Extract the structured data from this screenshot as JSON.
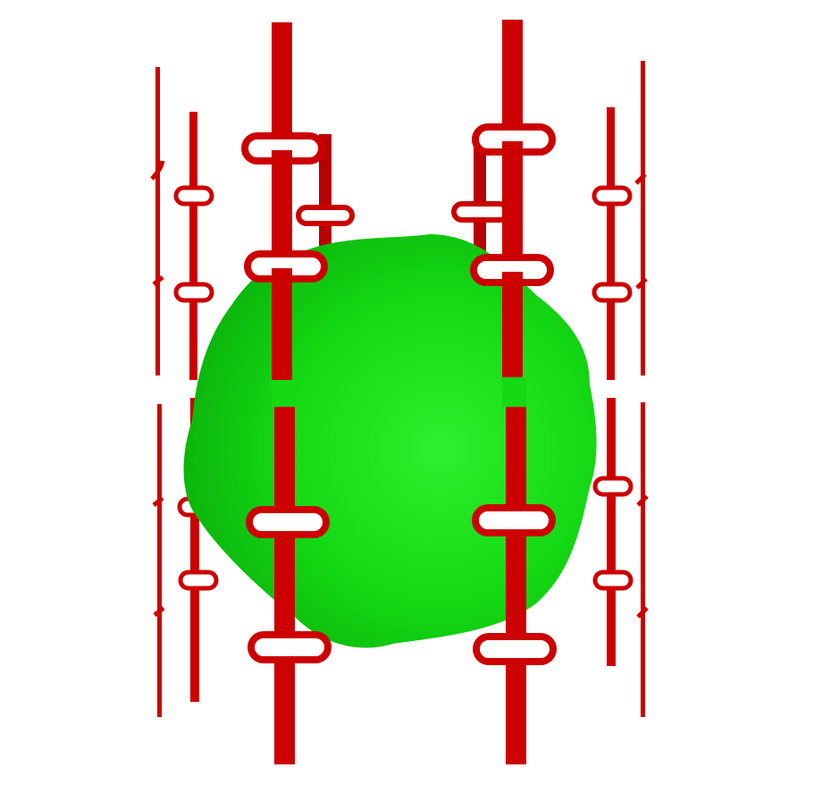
{
  "scene": {
    "background_color": "#ffffff",
    "blob": {
      "name": "green-blob",
      "color_light": "#2ef02e",
      "color_mid": "#14d914",
      "color_dark": "#0cb60c"
    },
    "structure": {
      "name": "red-cage",
      "color": "#cc0000",
      "color_dark": "#a30000",
      "color_light": "#e01010",
      "rod_count": 10,
      "clip_style": "rounded-loop"
    }
  }
}
